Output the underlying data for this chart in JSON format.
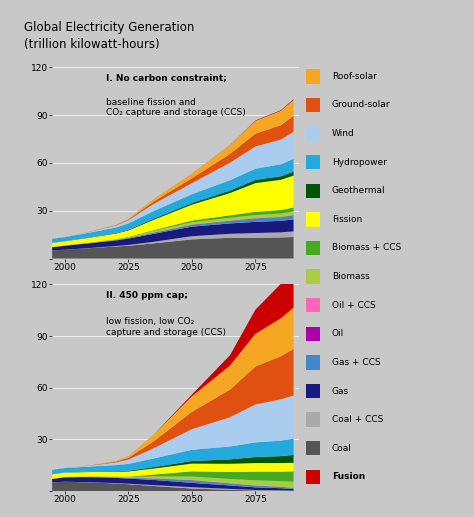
{
  "title": "Global Electricity Generation\n(trillion kilowatt-hours)",
  "background_color": "#c8c8c8",
  "yticks": [
    0,
    30,
    60,
    90,
    120
  ],
  "xticks": [
    2000,
    2025,
    2050,
    2075
  ],
  "panel1_label_bold": "I. No carbon constraint;",
  "panel1_label_rest": "baseline fission and\nCO₂ capture and storage (CCS)",
  "panel2_label_bold": "II. 450 ppm cap;",
  "panel2_label_rest": "low fission, low CO₂\ncapture and storage (CCS)",
  "layers_top_to_bottom": [
    {
      "name": "Roof-solar",
      "color": "#f5a623"
    },
    {
      "name": "Ground-solar",
      "color": "#e05010"
    },
    {
      "name": "Wind",
      "color": "#aaccee"
    },
    {
      "name": "Hydropower",
      "color": "#22aadd"
    },
    {
      "name": "Geothermal",
      "color": "#005500"
    },
    {
      "name": "Fission",
      "color": "#ffff00"
    },
    {
      "name": "Biomass + CCS",
      "color": "#44aa22"
    },
    {
      "name": "Biomass",
      "color": "#aacc44"
    },
    {
      "name": "Oil + CCS",
      "color": "#ff66bb"
    },
    {
      "name": "Oil",
      "color": "#aa00aa"
    },
    {
      "name": "Gas + CCS",
      "color": "#4488cc"
    },
    {
      "name": "Gas",
      "color": "#1a1a7e"
    },
    {
      "name": "Coal + CCS",
      "color": "#aaaaaa"
    },
    {
      "name": "Coal",
      "color": "#555555"
    },
    {
      "name": "Fusion",
      "color": "#cc0000"
    }
  ],
  "stack_order": [
    "Coal",
    "Coal + CCS",
    "Gas",
    "Gas + CCS",
    "Oil",
    "Oil + CCS",
    "Biomass",
    "Biomass + CCS",
    "Fission",
    "Geothermal",
    "Hydropower",
    "Wind",
    "Ground-solar",
    "Roof-solar",
    "Fusion"
  ],
  "panel1_data": {
    "years": [
      1995,
      2000,
      2010,
      2020,
      2025,
      2035,
      2050,
      2065,
      2075,
      2085,
      2090
    ],
    "Coal": [
      5.0,
      5.5,
      6.5,
      7.5,
      8.0,
      9.5,
      12.0,
      13.0,
      13.0,
      13.2,
      13.5
    ],
    "Coal + CCS": [
      0.0,
      0.0,
      0.1,
      0.3,
      0.5,
      1.0,
      2.0,
      2.5,
      3.0,
      3.2,
      3.5
    ],
    "Gas": [
      2.0,
      2.5,
      3.0,
      3.5,
      4.0,
      5.0,
      6.0,
      6.5,
      7.0,
      7.2,
      7.5
    ],
    "Gas + CCS": [
      0.0,
      0.0,
      0.1,
      0.2,
      0.3,
      0.6,
      1.0,
      1.5,
      2.0,
      2.2,
      2.5
    ],
    "Oil": [
      0.1,
      0.1,
      0.1,
      0.1,
      0.1,
      0.15,
      0.2,
      0.2,
      0.2,
      0.2,
      0.2
    ],
    "Oil + CCS": [
      0.0,
      0.0,
      0.0,
      0.0,
      0.0,
      0.05,
      0.1,
      0.1,
      0.1,
      0.1,
      0.1
    ],
    "Biomass": [
      0.2,
      0.2,
      0.3,
      0.4,
      0.5,
      1.0,
      1.5,
      1.8,
      2.0,
      2.1,
      2.2
    ],
    "Biomass + CCS": [
      0.0,
      0.0,
      0.0,
      0.1,
      0.2,
      0.5,
      1.0,
      1.5,
      2.0,
      2.2,
      2.5
    ],
    "Fission": [
      2.5,
      2.5,
      3.0,
      3.5,
      4.0,
      6.5,
      10.0,
      14.0,
      18.0,
      19.0,
      20.0
    ],
    "Geothermal": [
      0.1,
      0.1,
      0.2,
      0.3,
      0.4,
      0.7,
      1.0,
      1.5,
      2.0,
      2.2,
      2.5
    ],
    "Hydropower": [
      2.5,
      2.5,
      3.0,
      3.5,
      4.0,
      4.8,
      5.5,
      6.5,
      7.0,
      7.5,
      8.0
    ],
    "Wind": [
      0.1,
      0.1,
      0.5,
      1.2,
      2.0,
      4.5,
      7.0,
      11.0,
      14.0,
      15.5,
      17.0
    ],
    "Ground-solar": [
      0.0,
      0.0,
      0.1,
      0.3,
      0.5,
      1.5,
      3.0,
      5.5,
      8.0,
      9.0,
      10.0
    ],
    "Roof-solar": [
      0.0,
      0.0,
      0.1,
      0.3,
      0.5,
      1.5,
      3.0,
      5.5,
      8.0,
      9.0,
      10.0
    ],
    "Fusion": [
      0.0,
      0.0,
      0.0,
      0.0,
      0.0,
      0.0,
      0.0,
      0.1,
      0.3,
      0.4,
      0.5
    ]
  },
  "panel2_data": {
    "years": [
      1995,
      2000,
      2010,
      2020,
      2025,
      2035,
      2050,
      2065,
      2075,
      2085,
      2090
    ],
    "Coal": [
      5.0,
      5.5,
      5.0,
      4.5,
      4.0,
      3.0,
      1.5,
      0.8,
      0.4,
      0.3,
      0.2
    ],
    "Coal + CCS": [
      0.0,
      0.0,
      0.1,
      0.2,
      0.3,
      0.5,
      0.8,
      0.5,
      0.3,
      0.2,
      0.1
    ],
    "Gas": [
      2.0,
      2.5,
      3.0,
      3.0,
      3.0,
      3.0,
      2.5,
      2.0,
      1.5,
      1.2,
      1.0
    ],
    "Gas + CCS": [
      0.0,
      0.0,
      0.1,
      0.2,
      0.3,
      0.8,
      1.5,
      1.2,
      1.0,
      0.8,
      0.6
    ],
    "Oil": [
      0.1,
      0.1,
      0.1,
      0.1,
      0.1,
      0.1,
      0.1,
      0.05,
      0.05,
      0.05,
      0.05
    ],
    "Oil + CCS": [
      0.0,
      0.0,
      0.0,
      0.0,
      0.0,
      0.05,
      0.1,
      0.05,
      0.05,
      0.05,
      0.05
    ],
    "Biomass": [
      0.2,
      0.2,
      0.3,
      0.4,
      0.5,
      1.2,
      2.0,
      2.5,
      3.0,
      3.2,
      3.5
    ],
    "Biomass + CCS": [
      0.0,
      0.0,
      0.0,
      0.1,
      0.2,
      1.0,
      3.0,
      4.0,
      5.0,
      5.5,
      6.0
    ],
    "Fission": [
      2.5,
      2.5,
      2.5,
      2.8,
      3.0,
      3.5,
      4.5,
      4.8,
      5.0,
      5.0,
      5.0
    ],
    "Geothermal": [
      0.1,
      0.1,
      0.2,
      0.3,
      0.4,
      0.8,
      1.5,
      2.5,
      3.5,
      4.0,
      4.5
    ],
    "Hydropower": [
      2.5,
      2.5,
      3.0,
      3.5,
      4.0,
      5.0,
      6.5,
      7.5,
      8.5,
      9.0,
      9.5
    ],
    "Wind": [
      0.1,
      0.1,
      0.5,
      1.5,
      2.5,
      6.0,
      12.0,
      17.0,
      22.0,
      24.0,
      25.0
    ],
    "Ground-solar": [
      0.0,
      0.0,
      0.1,
      0.5,
      1.0,
      4.0,
      10.0,
      16.0,
      22.0,
      25.0,
      27.0
    ],
    "Roof-solar": [
      0.0,
      0.0,
      0.1,
      0.5,
      1.0,
      4.0,
      9.0,
      14.0,
      19.0,
      22.0,
      24.0
    ],
    "Fusion": [
      0.0,
      0.0,
      0.0,
      0.0,
      0.0,
      0.0,
      1.0,
      6.0,
      14.0,
      20.0,
      25.0
    ]
  }
}
